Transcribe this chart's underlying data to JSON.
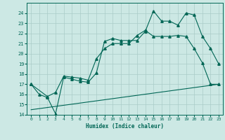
{
  "bg_color": "#cce8e4",
  "grid_color": "#aaccc8",
  "line_color": "#006655",
  "xlabel": "Humidex (Indice chaleur)",
  "xlim": [
    -0.5,
    23.5
  ],
  "ylim": [
    14,
    25
  ],
  "xticks": [
    0,
    1,
    2,
    3,
    4,
    5,
    6,
    7,
    8,
    9,
    10,
    11,
    12,
    13,
    14,
    15,
    16,
    17,
    18,
    19,
    20,
    21,
    22,
    23
  ],
  "yticks": [
    14,
    15,
    16,
    17,
    18,
    19,
    20,
    21,
    22,
    23,
    24
  ],
  "curve1_x": [
    0,
    1,
    2,
    3,
    4,
    5,
    6,
    7,
    8,
    9,
    10,
    11,
    12,
    13,
    14,
    15,
    16,
    17,
    18,
    19,
    20,
    21,
    22,
    23
  ],
  "curve1_y": [
    17.0,
    16.0,
    15.7,
    14.1,
    17.7,
    17.5,
    17.3,
    17.2,
    18.1,
    21.2,
    21.5,
    21.3,
    21.3,
    21.3,
    22.2,
    24.2,
    23.2,
    23.2,
    22.8,
    24.0,
    23.8,
    21.7,
    20.5,
    19.0
  ],
  "curve2_x": [
    0,
    2,
    3,
    4,
    5,
    6,
    7,
    8,
    9,
    10,
    11,
    12,
    13,
    14,
    15,
    16,
    17,
    18,
    19,
    20,
    21,
    22,
    23
  ],
  "curve2_y": [
    17.0,
    15.8,
    16.2,
    17.8,
    17.7,
    17.6,
    17.4,
    19.5,
    20.5,
    21.0,
    21.0,
    21.0,
    21.8,
    22.3,
    21.7,
    21.7,
    21.7,
    21.8,
    21.7,
    20.5,
    19.1,
    17.0,
    17.0
  ],
  "curve3_x": [
    0,
    23
  ],
  "curve3_y": [
    14.5,
    17.0
  ]
}
